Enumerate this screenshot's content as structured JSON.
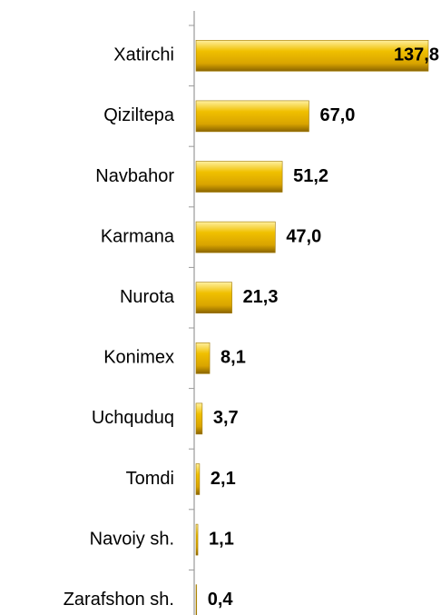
{
  "chart_data": {
    "type": "barh",
    "categories": [
      "Xatirchi",
      "Qiziltepa",
      "Navbahor",
      "Karmana",
      "Nurota",
      "Konimex",
      "Uchquduq",
      "Tomdi",
      "Navoiy sh.",
      "Zarafshon sh."
    ],
    "values": [
      137.8,
      67.0,
      51.2,
      47.0,
      21.3,
      8.1,
      3.7,
      2.1,
      1.1,
      0.4
    ],
    "value_labels": [
      "137,8",
      "67,0",
      "51,2",
      "47,0",
      "21,3",
      "8,1",
      "3,7",
      "2,1",
      "1,1",
      "0,4"
    ],
    "color": "#e6b000"
  }
}
